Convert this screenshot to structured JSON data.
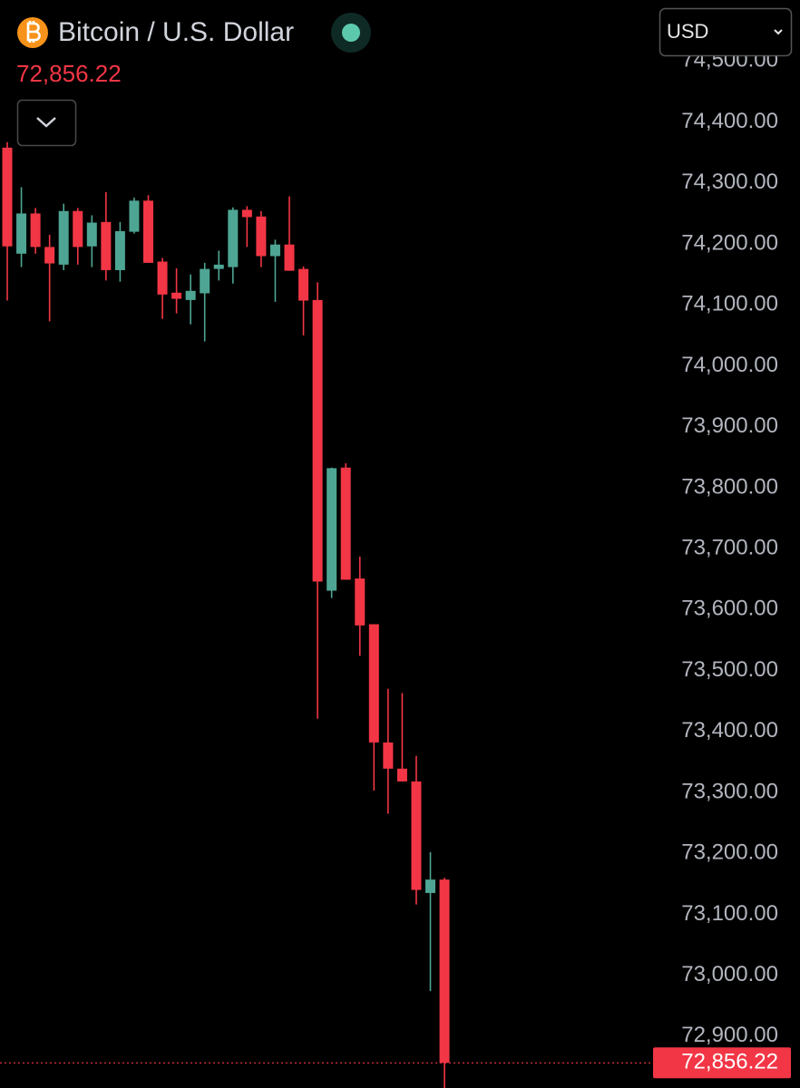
{
  "chart_data": {
    "type": "candlestick",
    "title": "Bitcoin / U.S. Dollar",
    "currency": "USD",
    "last_price": {
      "value": 72856.22,
      "label": "72,856.22"
    },
    "up_color": "#4ea593",
    "down_color": "#f23645",
    "open": [
      74358,
      74184,
      74250,
      74195,
      74166,
      74254,
      74196,
      74236,
      74157,
      74220,
      74271,
      74171,
      74120,
      74108,
      74119,
      74159,
      74162,
      74256,
      74245,
      74180,
      74199,
      74159,
      74108,
      73631,
      73833,
      73651,
      73576,
      73382,
      73339,
      73318,
      73135,
      73157
    ],
    "high": [
      74367,
      74293,
      74259,
      74215,
      74266,
      74259,
      74247,
      74285,
      74236,
      74276,
      74280,
      74177,
      74160,
      74150,
      74169,
      74189,
      74260,
      74262,
      74254,
      74207,
      74278,
      74163,
      74137,
      73833,
      73840,
      73687,
      73576,
      73470,
      73463,
      73360,
      73202,
      73160
    ],
    "low": [
      74107,
      74162,
      74184,
      74073,
      74157,
      74166,
      74162,
      74140,
      74138,
      74217,
      74169,
      74077,
      74086,
      74068,
      74040,
      74140,
      74135,
      74195,
      74162,
      74105,
      74156,
      74050,
      73421,
      73619,
      73649,
      73524,
      73303,
      73265,
      73318,
      73116,
      72974,
      72815
    ],
    "close": [
      74196,
      74250,
      74195,
      74168,
      74254,
      74195,
      74235,
      74157,
      74221,
      74271,
      74169,
      74117,
      74110,
      74123,
      74159,
      74166,
      74256,
      74244,
      74180,
      74199,
      74156,
      74107,
      73646,
      73832,
      73649,
      73574,
      73382,
      73339,
      73318,
      73140,
      73157,
      72856.22
    ],
    "ylim": [
      72815,
      74511
    ],
    "yticks": [
      {
        "value": 72900,
        "label": "72,900.00"
      },
      {
        "value": 73000,
        "label": "73,000.00"
      },
      {
        "value": 73100,
        "label": "73,100.00"
      },
      {
        "value": 73200,
        "label": "73,200.00"
      },
      {
        "value": 73300,
        "label": "73,300.00"
      },
      {
        "value": 73400,
        "label": "73,400.00"
      },
      {
        "value": 73500,
        "label": "73,500.00"
      },
      {
        "value": 73600,
        "label": "73,600.00"
      },
      {
        "value": 73700,
        "label": "73,700.00"
      },
      {
        "value": 73800,
        "label": "73,800.00"
      },
      {
        "value": 73900,
        "label": "73,900.00"
      },
      {
        "value": 74000,
        "label": "74,000.00"
      },
      {
        "value": 74100,
        "label": "74,100.00"
      },
      {
        "value": 74200,
        "label": "74,200.00"
      },
      {
        "value": 74300,
        "label": "74,300.00"
      },
      {
        "value": 74400,
        "label": "74,400.00"
      },
      {
        "value": 74500,
        "label": "74,500.00"
      }
    ]
  }
}
